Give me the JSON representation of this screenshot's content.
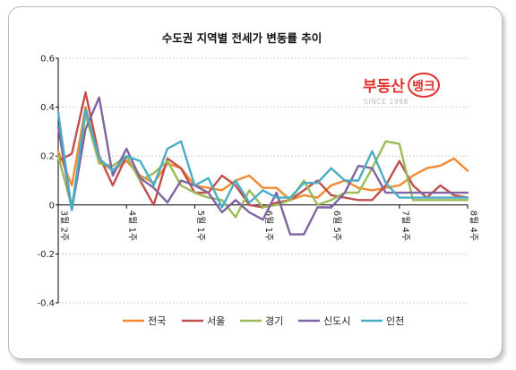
{
  "chart_data": {
    "type": "line",
    "title": "수도권 지역별 전세가 변동률 추이",
    "ylim": [
      -0.4,
      0.6
    ],
    "y_ticks": [
      "0.6",
      "0.4",
      "0.2",
      "0",
      "-0.2",
      "-0.4"
    ],
    "y_tick_values": [
      0.6,
      0.4,
      0.2,
      0,
      -0.2,
      -0.4
    ],
    "x_tick_labels": [
      "3월 2주",
      "4월 1주",
      "5월 1주",
      "6월 1주",
      "6월 5주",
      "7월 4주",
      "8월 4주"
    ],
    "x_tick_index": [
      0,
      5,
      10,
      15,
      20,
      25,
      30
    ],
    "point_count": 31,
    "grid": true,
    "legend_position": "bottom",
    "series": [
      {
        "name": "전국",
        "color": "#f28a30",
        "values": [
          0.22,
          0.08,
          0.4,
          0.18,
          0.14,
          0.18,
          0.12,
          0.09,
          0.17,
          0.15,
          0.08,
          0.07,
          0.06,
          0.1,
          0.12,
          0.07,
          0.07,
          0.02,
          0.04,
          0.03,
          0.08,
          0.1,
          0.07,
          0.06,
          0.07,
          0.08,
          0.12,
          0.15,
          0.16,
          0.19,
          0.14
        ]
      },
      {
        "name": "서울",
        "color": "#c0504d",
        "values": [
          0.18,
          0.21,
          0.46,
          0.2,
          0.08,
          0.2,
          0.1,
          0.0,
          0.19,
          0.15,
          0.05,
          0.05,
          0.12,
          0.08,
          0.0,
          -0.01,
          0.01,
          0.02,
          0.06,
          0.1,
          0.04,
          0.03,
          0.02,
          0.02,
          0.08,
          0.18,
          0.08,
          0.03,
          0.08,
          0.04,
          0.03
        ]
      },
      {
        "name": "경기",
        "color": "#9bbb59",
        "values": [
          0.2,
          -0.01,
          0.37,
          0.17,
          0.16,
          0.2,
          0.1,
          0.13,
          0.18,
          0.08,
          0.05,
          0.03,
          0.02,
          -0.05,
          0.06,
          -0.01,
          0.0,
          0.02,
          0.1,
          0.0,
          0.02,
          0.05,
          0.05,
          0.15,
          0.26,
          0.25,
          0.02,
          0.02,
          0.02,
          0.02,
          0.02
        ]
      },
      {
        "name": "신도시",
        "color": "#8064a2",
        "values": [
          0.32,
          -0.02,
          0.31,
          0.44,
          0.12,
          0.23,
          0.11,
          0.07,
          0.01,
          0.1,
          0.08,
          0.05,
          -0.03,
          0.02,
          -0.03,
          -0.06,
          0.05,
          -0.12,
          -0.12,
          -0.01,
          -0.01,
          0.05,
          0.16,
          0.15,
          0.05,
          0.05,
          0.05,
          0.05,
          0.05,
          0.05,
          0.05
        ]
      },
      {
        "name": "인천",
        "color": "#4bacc6",
        "values": [
          0.38,
          -0.02,
          0.39,
          0.19,
          0.14,
          0.2,
          0.18,
          0.08,
          0.23,
          0.26,
          0.08,
          0.11,
          -0.01,
          0.1,
          0.01,
          0.06,
          0.03,
          0.03,
          0.09,
          0.09,
          0.15,
          0.1,
          0.1,
          0.22,
          0.09,
          0.03,
          0.03,
          0.03,
          0.03,
          0.03,
          0.03
        ]
      }
    ]
  },
  "logo": {
    "text": "부동산뱅크",
    "word": "부동산",
    "badge": "뱅크",
    "since": "SINCE 1988",
    "color": "#e0322f"
  }
}
